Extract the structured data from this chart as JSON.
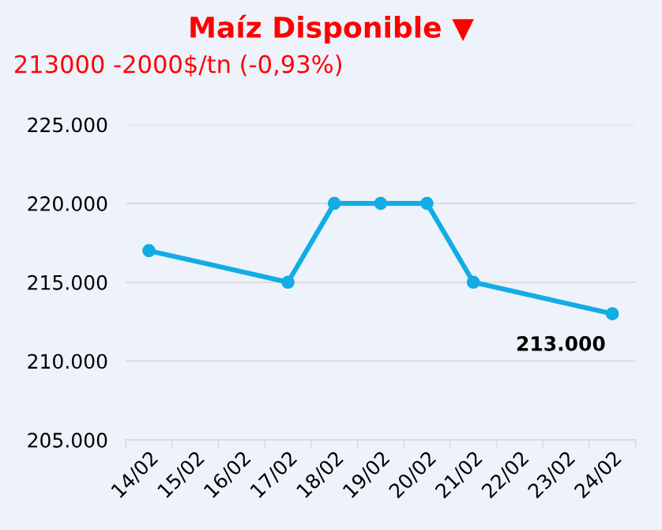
{
  "chart_data": {
    "type": "line",
    "title": "Maíz Disponible ▼",
    "subtitle": "213000 -2000$/tn (-0,93%)",
    "categories": [
      "14/02",
      "15/02",
      "16/02",
      "17/02",
      "18/02",
      "19/02",
      "20/02",
      "21/02",
      "22/02",
      "23/02",
      "24/02"
    ],
    "series": [
      {
        "color": "#12ace6",
        "values": [
          217000,
          null,
          null,
          215000,
          220000,
          220000,
          220000,
          215000,
          null,
          null,
          213000
        ]
      }
    ],
    "ylim": [
      205000,
      225000
    ],
    "yticks": [
      {
        "value": 205000,
        "label": "205.000"
      },
      {
        "value": 210000,
        "label": "210.000"
      },
      {
        "value": 215000,
        "label": "215.000"
      },
      {
        "value": 220000,
        "label": "220.000"
      },
      {
        "value": 225000,
        "label": "225.000"
      }
    ],
    "annotations": [
      {
        "text": "213.000",
        "x": "24/02",
        "y": 213000
      }
    ],
    "grid": "y",
    "legend": false,
    "marker": "circle",
    "line_style": "solid"
  }
}
